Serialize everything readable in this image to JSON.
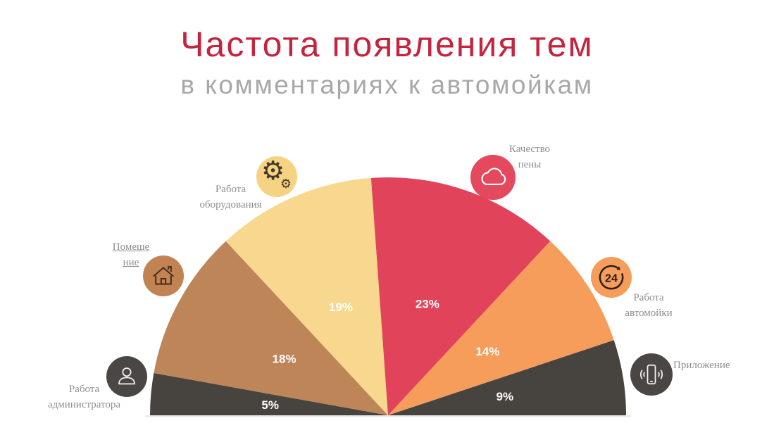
{
  "header": {
    "title": "Частота появления тем",
    "subtitle": "в комментариях к автомойкам"
  },
  "theme": {
    "background": "#ffffff",
    "title_color": "#c5243e",
    "subtitle_color": "#a8a8a8",
    "legend_label_color": "#8f8f8f",
    "percent_label_color": "#ffffff"
  },
  "chart_data": {
    "type": "pie",
    "variant": "semicircle-fan",
    "title": "Частота появления тем",
    "subtitle": "в комментариях к автомойкам",
    "unit": "%",
    "start_angle_deg": 180,
    "end_angle_deg": 0,
    "legend_position": "around-arc",
    "segments": [
      {
        "label": "Работа администратора",
        "label_lines": [
          "Работа",
          "администратора"
        ],
        "value": 5,
        "display_value": "5%",
        "color": "#47433f",
        "icon": "person",
        "icon_bg": "#4a4643",
        "icon_fg": "#f4f4f4"
      },
      {
        "label": "Помещение",
        "label_lines": [
          "Помеще",
          "ние"
        ],
        "value": 18,
        "display_value": "18%",
        "color": "#bd8558",
        "icon": "house",
        "icon_bg": "#c28352",
        "icon_fg": "#3c2614"
      },
      {
        "label": "Работа оборудования",
        "label_lines": [
          "Работа",
          "оборудования"
        ],
        "value": 19,
        "display_value": "19%",
        "color": "#f8d88e",
        "icon": "gears",
        "icon_bg": "#f6d383",
        "icon_fg": "#3f382a"
      },
      {
        "label": "Качество пены",
        "label_lines": [
          "Качество",
          "пены"
        ],
        "value": 23,
        "display_value": "23%",
        "color": "#e0435a",
        "icon": "cloud",
        "icon_bg": "#e4495e",
        "icon_fg": "#ffffff"
      },
      {
        "label": "Работа автомойки",
        "label_lines": [
          "Работа",
          "автомойки"
        ],
        "value": 14,
        "display_value": "14%",
        "color": "#f79d5c",
        "icon": "24-hours",
        "icon_bg": "#f79d5c",
        "icon_fg": "#241d15"
      },
      {
        "label": "Приложение",
        "label_lines": [
          "Приложение"
        ],
        "value": 9,
        "display_value": "9%",
        "color": "#47433f",
        "icon": "phone",
        "icon_bg": "#4a4643",
        "icon_fg": "#f4f4f4"
      }
    ]
  }
}
